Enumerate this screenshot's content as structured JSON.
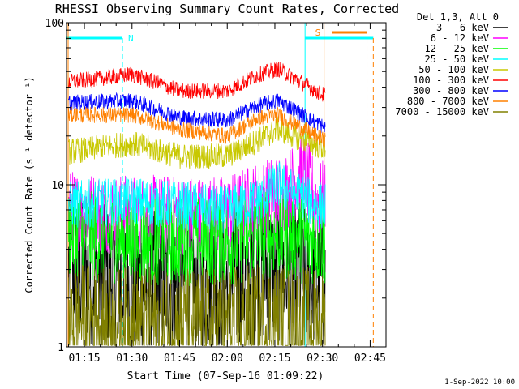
{
  "chart_data": {
    "type": "line",
    "title": "RHESSI Observing Summary Count Rates, Corrected",
    "xlabel": "Start Time (07-Sep-16 01:09:22)",
    "ylabel": "Corrected Count Rate (s⁻¹ detector⁻¹)",
    "yscale": "log",
    "ylim": [
      1,
      100
    ],
    "xlim_minutes": [
      "01:09:22",
      "02:50:00"
    ],
    "x_ticks": [
      "01:15",
      "01:30",
      "01:45",
      "02:00",
      "02:15",
      "02:30",
      "02:45"
    ],
    "y_ticks": [
      "1",
      "10",
      "100"
    ],
    "legend_title": "Det 1,3, Att 0",
    "legend_position": "right",
    "footer_date": "1-Sep-2022 10:00",
    "markers": [
      {
        "label": "N",
        "color": "#00ffff",
        "start": "01:09:22",
        "end": "01:27:00"
      },
      {
        "label": "S",
        "color": "#ff8000",
        "start": "02:31:00",
        "end": "02:44:00"
      }
    ],
    "series": [
      {
        "name": "3 - 6 keV",
        "color": "#000000",
        "keyframes": [
          [
            "01:10",
            3
          ],
          [
            "01:30",
            2.5
          ],
          [
            "02:00",
            2.5
          ],
          [
            "02:15",
            3.0
          ],
          [
            "02:28",
            2.5
          ]
        ]
      },
      {
        "name": "6 - 12 keV",
        "color": "#ff00ff",
        "keyframes": [
          [
            "01:10",
            7
          ],
          [
            "01:30",
            6.5
          ],
          [
            "02:00",
            6.5
          ],
          [
            "02:10",
            8
          ],
          [
            "02:18",
            9
          ],
          [
            "02:24",
            12
          ],
          [
            "02:28",
            8
          ]
        ]
      },
      {
        "name": "12 - 25 keV",
        "color": "#00ff00",
        "keyframes": [
          [
            "01:10",
            5
          ],
          [
            "01:30",
            4.5
          ],
          [
            "02:00",
            4.5
          ],
          [
            "02:15",
            5
          ],
          [
            "02:28",
            4.5
          ]
        ]
      },
      {
        "name": "25 - 50 keV",
        "color": "#00ffff",
        "keyframes": [
          [
            "01:10",
            7.5
          ],
          [
            "01:30",
            8
          ],
          [
            "02:00",
            7
          ],
          [
            "02:10",
            8
          ],
          [
            "02:16",
            10
          ],
          [
            "02:28",
            7.5
          ]
        ]
      },
      {
        "name": "50 - 100 keV",
        "color": "#c8c800",
        "keyframes": [
          [
            "01:10",
            16
          ],
          [
            "01:30",
            18
          ],
          [
            "01:45",
            15
          ],
          [
            "02:00",
            15
          ],
          [
            "02:10",
            19
          ],
          [
            "02:16",
            22
          ],
          [
            "02:30",
            17
          ]
        ]
      },
      {
        "name": "100 - 300 keV",
        "color": "#ff0000",
        "keyframes": [
          [
            "01:10",
            43
          ],
          [
            "01:30",
            48
          ],
          [
            "01:45",
            38
          ],
          [
            "02:00",
            38
          ],
          [
            "02:10",
            48
          ],
          [
            "02:16",
            52
          ],
          [
            "02:30",
            36
          ]
        ]
      },
      {
        "name": "300 - 800 keV",
        "color": "#0000ff",
        "keyframes": [
          [
            "01:10",
            32
          ],
          [
            "01:30",
            33
          ],
          [
            "01:45",
            26
          ],
          [
            "02:00",
            25
          ],
          [
            "02:10",
            31
          ],
          [
            "02:16",
            33
          ],
          [
            "02:30",
            23
          ]
        ]
      },
      {
        "name": "800 - 7000 keV",
        "color": "#ff8000",
        "keyframes": [
          [
            "01:10",
            27
          ],
          [
            "01:30",
            27
          ],
          [
            "01:45",
            22
          ],
          [
            "02:00",
            20
          ],
          [
            "02:10",
            26
          ],
          [
            "02:16",
            27
          ],
          [
            "02:30",
            19
          ]
        ]
      },
      {
        "name": "7000 - 15000 keV",
        "color": "#808000",
        "keyframes": [
          [
            "01:10",
            1.5
          ],
          [
            "01:30",
            1.4
          ],
          [
            "02:00",
            1.4
          ],
          [
            "02:15",
            1.5
          ],
          [
            "02:28",
            1.4
          ]
        ]
      }
    ]
  }
}
